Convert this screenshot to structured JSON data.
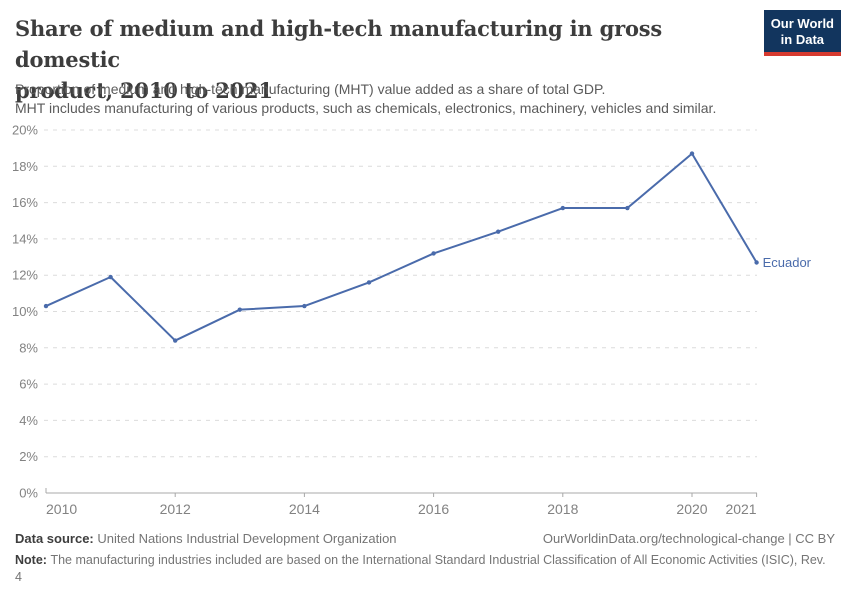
{
  "header": {
    "title_line1": "Share of medium and high-tech manufacturing in gross domestic",
    "title_line2": "product, 2010 to 2021",
    "subtitle_line1": "Proportion of medium and high-tech manufacturing (MHT) value added as a share of total GDP.",
    "subtitle_line2": "MHT includes manufacturing of various products, such as chemicals, electronics, machinery, vehicles and similar.",
    "logo_line1": "Our World",
    "logo_line2": "in Data"
  },
  "colors": {
    "series": "#4a6bab",
    "logo_bg": "#12355e",
    "logo_stripe": "#d63a2f",
    "grid": "#dcdcdc",
    "axis": "#a8a8a8",
    "tick_label": "#828282"
  },
  "chart_data": {
    "type": "line",
    "title": "Share of medium and high-tech manufacturing in gross domestic product, 2010 to 2021",
    "x": [
      2010,
      2011,
      2012,
      2013,
      2014,
      2015,
      2016,
      2017,
      2018,
      2019,
      2020,
      2021
    ],
    "series": [
      {
        "name": "Ecuador",
        "color": "#4a6bab",
        "values": [
          10.3,
          11.9,
          8.4,
          10.1,
          10.3,
          11.6,
          13.2,
          14.4,
          15.7,
          15.7,
          18.7,
          12.7
        ]
      }
    ],
    "ylim": [
      0,
      20
    ],
    "y_ticks": [
      0,
      2,
      4,
      6,
      8,
      10,
      12,
      14,
      16,
      18,
      20
    ],
    "y_tick_suffix": "%",
    "x_ticks": [
      2010,
      2012,
      2014,
      2016,
      2018,
      2020,
      2021
    ],
    "xlabel": "",
    "ylabel": "",
    "grid": "horizontal-dashed",
    "legend_position": "end-of-line-label"
  },
  "footer": {
    "data_source_label": "Data source:",
    "data_source_value": "United Nations Industrial Development Organization",
    "link": "OurWorldinData.org/technological-change | CC BY",
    "note_label": "Note:",
    "note_value": "The manufacturing industries included are based on the International Standard Industrial Classification of All Economic Activities (ISIC), Rev. 4"
  }
}
